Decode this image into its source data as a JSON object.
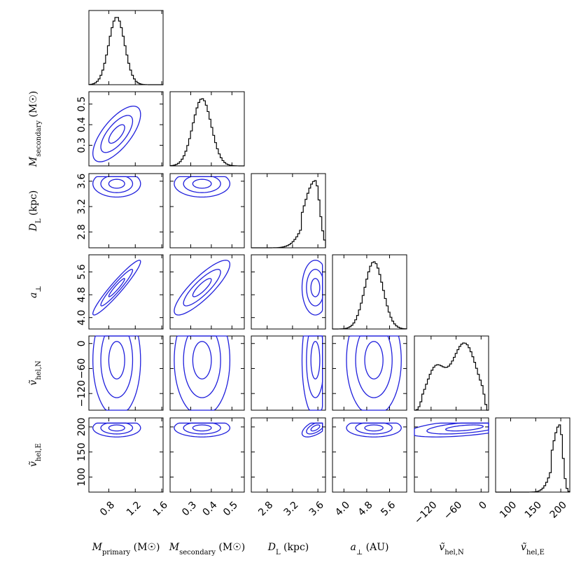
{
  "chart_data": {
    "type": "corner",
    "title": "",
    "colors": {
      "hist": "#000000",
      "contour": "#1f1fdc",
      "frame": "#000000",
      "background": "#ffffff"
    },
    "params": [
      {
        "id": "mp",
        "label": "M_primary (M_☉)",
        "label_main": "M",
        "label_sub": "primary",
        "label_suffix": " (M☉)",
        "range": [
          0.5,
          1.62
        ],
        "ticks": [
          "0.8",
          "1.2",
          "1.6"
        ],
        "tick_values": [
          0.8,
          1.2,
          1.6
        ],
        "hist_mean": 0.92,
        "hist_sd": 0.12,
        "hist_skew": 0
      },
      {
        "id": "ms",
        "label": "M_secondary (M_☉)",
        "label_main": "M",
        "label_sub": "secondary",
        "label_suffix": " (M☉)",
        "range": [
          0.2,
          0.56
        ],
        "ticks": [
          "0.3",
          "0.4",
          "0.5"
        ],
        "tick_values": [
          0.3,
          0.4,
          0.5
        ],
        "hist_mean": 0.355,
        "hist_sd": 0.045,
        "hist_skew": 0
      },
      {
        "id": "dl",
        "label": "D_L (kpc)",
        "label_main": "D",
        "label_sub": "L",
        "label_suffix": " (kpc)",
        "range": [
          2.55,
          3.72
        ],
        "ticks": [
          "2.8",
          "3.2",
          "3.6"
        ],
        "tick_values": [
          2.8,
          3.2,
          3.6
        ],
        "hist_mean": 3.56,
        "hist_sd": 0.07,
        "hist_skew": -1
      },
      {
        "id": "ap",
        "label": "a_⊥ (AU)",
        "label_main": "a",
        "label_sub": "⊥",
        "label_suffix": " (AU)",
        "range": [
          3.6,
          6.2
        ],
        "ticks": [
          "4.0",
          "4.8",
          "5.6"
        ],
        "tick_values": [
          4.0,
          4.8,
          5.6
        ],
        "hist_mean": 5.05,
        "hist_sd": 0.32,
        "hist_skew": 0
      },
      {
        "id": "vn",
        "label": "ṽ_hel,N",
        "label_main": "ṽ",
        "label_sub": "hel,N",
        "label_suffix": "",
        "range": [
          -160,
          18
        ],
        "ticks": [
          "−120",
          "−60",
          "0"
        ],
        "tick_values": [
          -120,
          -60,
          0
        ],
        "hist_mean": -40,
        "hist_sd": 45,
        "hist_skew": 0
      },
      {
        "id": "ve",
        "label": "ṽ_hel,E",
        "label_main": "ṽ",
        "label_sub": "hel,E",
        "label_suffix": "",
        "range": [
          70,
          218
        ],
        "ticks": [
          "100",
          "150",
          "200"
        ],
        "tick_values": [
          100,
          150,
          200
        ],
        "hist_mean": 198,
        "hist_sd": 6,
        "hist_skew": -1
      }
    ],
    "y_tick_labels": {
      "ms": [
        "0.3",
        "0.4",
        "0.5"
      ],
      "dl": [
        "2.8",
        "3.2",
        "3.6"
      ],
      "ap": [
        "4.0",
        "4.8",
        "5.6"
      ],
      "vn": [
        "−120",
        "−60",
        "0"
      ],
      "ve": [
        "100",
        "150",
        "200"
      ]
    },
    "x_axis_labels": [
      "M_primary (M_☉)",
      "M_secondary (M_☉)",
      "D_L (kpc)",
      "a_⊥ (AU)",
      "ṽ_hel,N",
      "ṽ_hel,E"
    ],
    "y_axis_labels": [
      "M_secondary (M_☉)",
      "D_L (kpc)",
      "a_⊥",
      "ṽ_hel,N",
      "ṽ_hel,E"
    ],
    "contour_levels": 3,
    "grid": false
  }
}
